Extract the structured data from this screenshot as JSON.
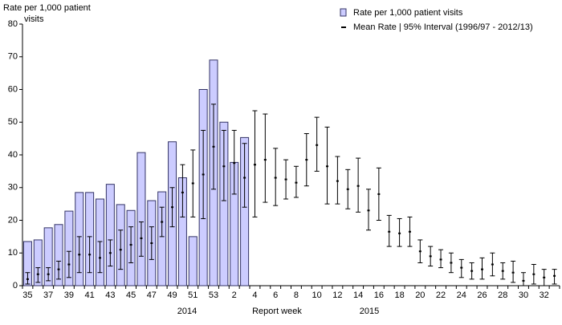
{
  "chart_data": {
    "type": "bar_errorbar",
    "ylabel": "Rate per 1,000  patient visits",
    "xlabel": "Report week",
    "x_group_labels": [
      "2014",
      "2015"
    ],
    "categories": [
      "35",
      null,
      "37",
      null,
      "39",
      null,
      "41",
      null,
      "43",
      null,
      "45",
      null,
      "47",
      null,
      "49",
      null,
      "51",
      null,
      "53",
      null,
      "2",
      null,
      "4",
      null,
      "6",
      null,
      "8",
      null,
      "10",
      null,
      "12",
      null,
      "14",
      null,
      "16",
      null,
      "18",
      null,
      "20",
      null,
      "22",
      null,
      "24",
      null,
      "26",
      null,
      "28",
      null,
      "30",
      null,
      "32",
      null
    ],
    "series": [
      {
        "name": "Rate per 1,000 patient visits",
        "color": "#ccccff",
        "edge_color": "#333366",
        "values": [
          13.5,
          14,
          17.7,
          18.7,
          22.8,
          28.5,
          28.5,
          26.5,
          31,
          24.8,
          23,
          40.7,
          26,
          28.7,
          44,
          33,
          15,
          60,
          69,
          50,
          37.7,
          45.3,
          null,
          null,
          null,
          null,
          null,
          null,
          null,
          null,
          null,
          null,
          null,
          null,
          null,
          null,
          null,
          null,
          null,
          null,
          null,
          null,
          null,
          null,
          null,
          null,
          null,
          null,
          null,
          null,
          null,
          null
        ]
      },
      {
        "name": "Mean Rate | 95% Interval (1996/97 - 2012/13)",
        "color": "#000000",
        "values": [
          2,
          3.5,
          3.5,
          5,
          6.5,
          9.5,
          9.5,
          8.5,
          10,
          11,
          12.5,
          14.5,
          13,
          19.5,
          24,
          28.5,
          31.3,
          34,
          42.5,
          36.5,
          37.5,
          33,
          37,
          38.5,
          33,
          32.5,
          31.5,
          38.5,
          43,
          36.5,
          32,
          29.5,
          30.5,
          23,
          28,
          16.5,
          16,
          16.5,
          10.5,
          9,
          8,
          7,
          5.5,
          4.5,
          5,
          6.5,
          4.5,
          4,
          1.5,
          3.5,
          2.5,
          3
        ],
        "lower": [
          0.5,
          1,
          1.5,
          2,
          2.5,
          4,
          4,
          4,
          6,
          5,
          7,
          9,
          8,
          15,
          18,
          21,
          21,
          20.5,
          29.5,
          26,
          28,
          24,
          21,
          25.5,
          24.5,
          26.5,
          27,
          30.5,
          35,
          25,
          25,
          23.5,
          22.5,
          17,
          20,
          12,
          12,
          12,
          7,
          6,
          5.5,
          4,
          2.5,
          2,
          2,
          3,
          2,
          1,
          0,
          0.5,
          0,
          0.5
        ],
        "upper": [
          4,
          5.5,
          5.5,
          7.5,
          10.5,
          15,
          15,
          13.5,
          14,
          17,
          18,
          19.5,
          18,
          24,
          30,
          37,
          41.5,
          47.5,
          55.5,
          47.5,
          47.5,
          43.5,
          53.5,
          52.5,
          42,
          38.5,
          36.5,
          46.5,
          51.5,
          48.5,
          39.5,
          35.5,
          39,
          29.5,
          36,
          21.5,
          20.5,
          21,
          14,
          12,
          11,
          10,
          8,
          7,
          8.5,
          10,
          7,
          7.5,
          4,
          6.5,
          5,
          5
        ]
      }
    ],
    "ylim": [
      0,
      80
    ],
    "yticks": [
      0,
      10,
      20,
      30,
      40,
      50,
      60,
      70,
      80
    ],
    "grid": false
  }
}
